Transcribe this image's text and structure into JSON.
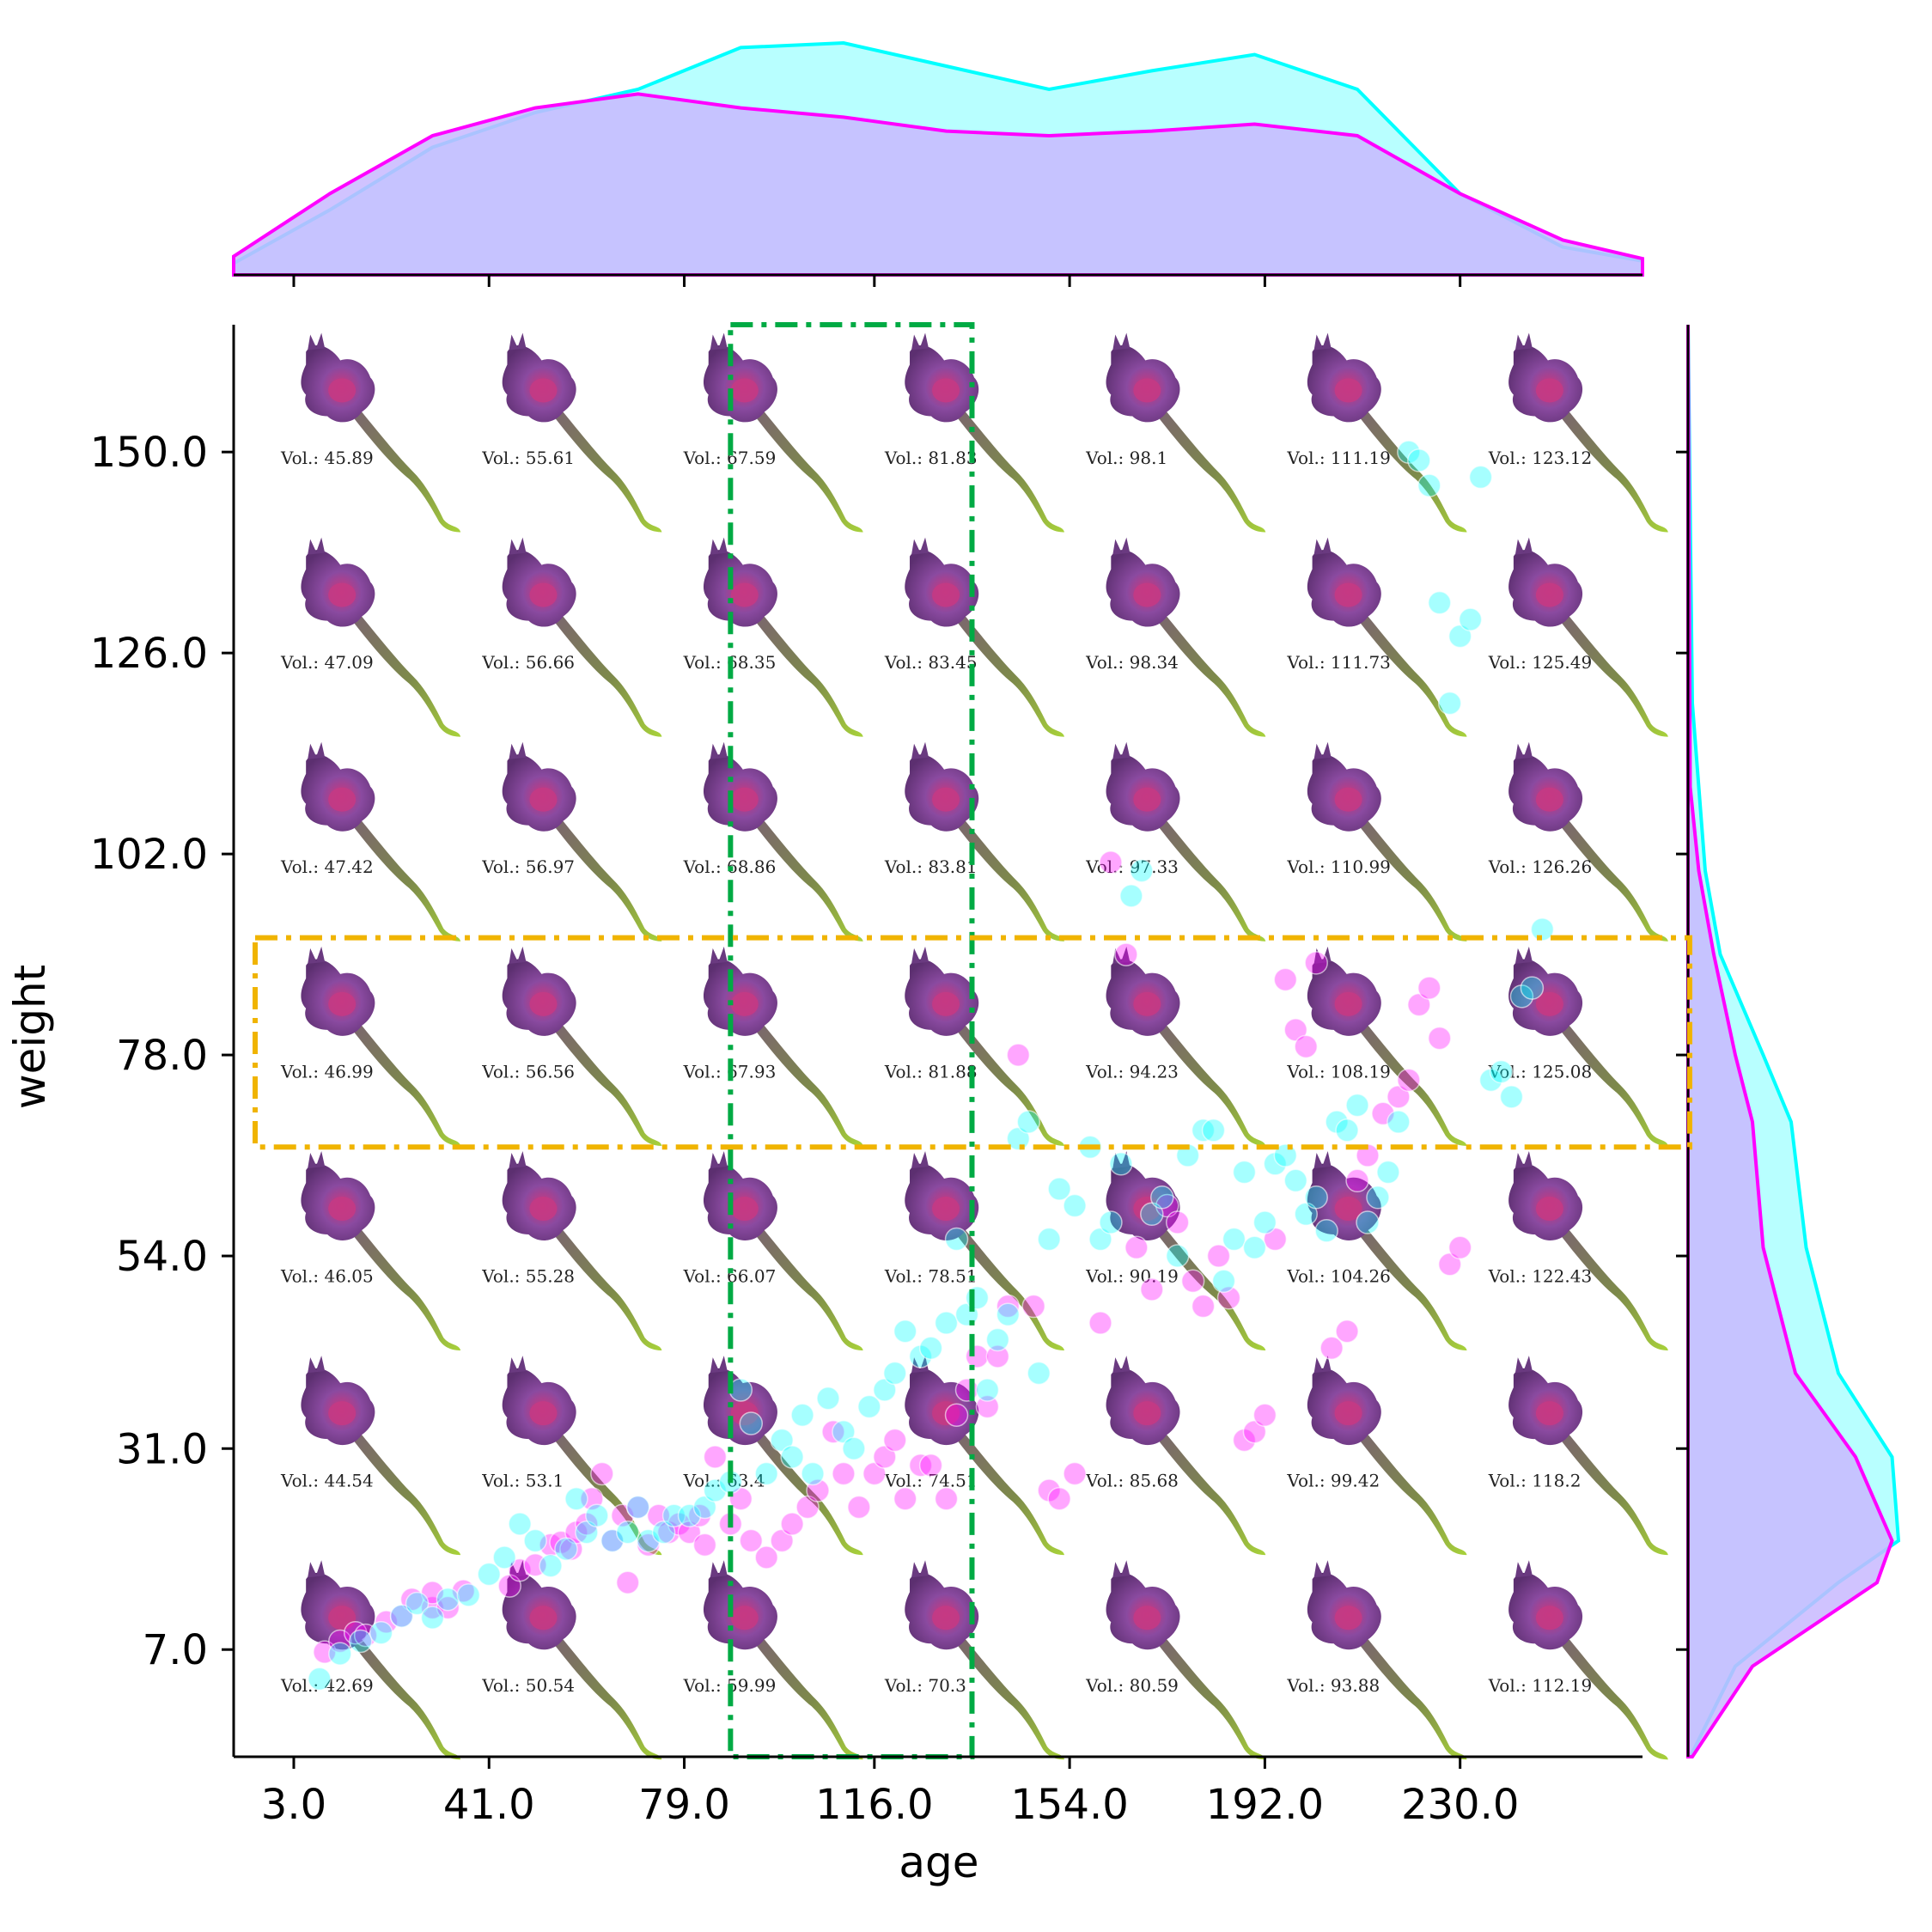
{
  "chart_data": {
    "type": "scatter",
    "xlabel": "age",
    "ylabel": "weight",
    "xlim": [
      -8.7,
      265.5
    ],
    "ylim": [
      -5.8,
      165.2
    ],
    "xticks": [
      "3.0",
      "41.0",
      "79.0",
      "116.0",
      "154.0",
      "192.0",
      "230.0"
    ],
    "yticks": [
      "7.0",
      "31.0",
      "54.0",
      "78.0",
      "102.0",
      "126.0",
      "150.0"
    ],
    "colors": {
      "series_a": "#ff00ff",
      "series_b": "#00ffff",
      "kde_overlap": "#c8b8ff",
      "vertical_highlight": "#00aa44",
      "horizontal_highlight": "#f0b400"
    },
    "grid": false,
    "legend": "none",
    "series": [
      {
        "color": "#ff00ff",
        "points": [
          [
            9,
            6.7
          ],
          [
            12,
            8
          ],
          [
            15,
            9
          ],
          [
            17,
            8.7
          ],
          [
            21,
            10.3
          ],
          [
            24,
            11
          ],
          [
            26,
            13
          ],
          [
            30,
            12
          ],
          [
            30,
            13.8
          ],
          [
            33,
            12
          ],
          [
            36,
            14
          ],
          [
            45,
            14.6
          ],
          [
            47,
            16.5
          ],
          [
            50,
            17.1
          ],
          [
            53,
            19.5
          ],
          [
            55,
            19.8
          ],
          [
            57,
            19
          ],
          [
            58,
            21
          ],
          [
            60,
            22
          ],
          [
            61,
            25
          ],
          [
            63,
            28
          ],
          [
            65,
            20
          ],
          [
            67,
            23
          ],
          [
            68,
            15
          ],
          [
            70,
            24
          ],
          [
            72,
            19.5
          ],
          [
            74,
            23
          ],
          [
            76,
            21
          ],
          [
            78,
            22
          ],
          [
            80,
            21
          ],
          [
            82,
            23
          ],
          [
            83,
            19.5
          ],
          [
            85,
            30
          ],
          [
            88,
            22
          ],
          [
            90,
            25
          ],
          [
            92,
            20
          ],
          [
            95,
            18
          ],
          [
            98,
            20
          ],
          [
            100,
            22
          ],
          [
            103,
            24
          ],
          [
            105,
            26
          ],
          [
            108,
            33
          ],
          [
            110,
            28
          ],
          [
            113,
            24
          ],
          [
            116,
            28
          ],
          [
            118,
            30
          ],
          [
            120,
            32
          ],
          [
            122,
            25
          ],
          [
            125,
            29
          ],
          [
            127,
            29
          ],
          [
            130,
            25
          ],
          [
            132,
            35
          ],
          [
            134,
            38
          ],
          [
            136,
            42
          ],
          [
            138,
            36
          ],
          [
            140,
            42
          ],
          [
            142,
            48
          ],
          [
            144,
            78
          ],
          [
            147,
            48
          ],
          [
            150,
            26
          ],
          [
            152,
            25
          ],
          [
            155,
            28
          ],
          [
            160,
            46
          ],
          [
            162,
            101
          ],
          [
            165,
            90
          ],
          [
            167,
            55
          ],
          [
            170,
            50
          ],
          [
            173,
            60
          ],
          [
            175,
            58
          ],
          [
            178,
            51
          ],
          [
            180,
            48
          ],
          [
            183,
            54
          ],
          [
            185,
            49
          ],
          [
            188,
            32
          ],
          [
            190,
            33
          ],
          [
            192,
            35
          ],
          [
            194,
            56
          ],
          [
            196,
            87
          ],
          [
            198,
            81
          ],
          [
            200,
            79
          ],
          [
            202,
            89
          ],
          [
            205,
            43
          ],
          [
            208,
            45
          ],
          [
            210,
            63
          ],
          [
            212,
            66
          ],
          [
            215,
            71
          ],
          [
            218,
            73
          ],
          [
            220,
            75
          ],
          [
            222,
            84
          ],
          [
            224,
            86
          ],
          [
            226,
            80
          ],
          [
            228,
            53
          ],
          [
            230,
            55
          ]
        ]
      },
      {
        "color": "#00ffff",
        "points": [
          [
            8,
            3.5
          ],
          [
            12,
            6.5
          ],
          [
            16,
            8
          ],
          [
            20,
            9
          ],
          [
            24,
            11
          ],
          [
            27,
            12.5
          ],
          [
            30,
            10.8
          ],
          [
            33,
            13
          ],
          [
            37,
            13.5
          ],
          [
            41,
            16
          ],
          [
            44,
            18
          ],
          [
            47,
            22
          ],
          [
            50,
            20
          ],
          [
            53,
            17
          ],
          [
            56,
            19
          ],
          [
            58,
            25
          ],
          [
            60,
            21
          ],
          [
            62,
            23
          ],
          [
            65,
            20
          ],
          [
            68,
            21
          ],
          [
            70,
            24
          ],
          [
            72,
            20
          ],
          [
            75,
            21
          ],
          [
            77,
            23
          ],
          [
            80,
            23
          ],
          [
            83,
            24
          ],
          [
            85,
            26
          ],
          [
            88,
            27
          ],
          [
            90,
            38
          ],
          [
            92,
            34
          ],
          [
            95,
            28
          ],
          [
            98,
            32
          ],
          [
            100,
            30
          ],
          [
            102,
            35
          ],
          [
            104,
            28
          ],
          [
            107,
            37
          ],
          [
            110,
            33
          ],
          [
            112,
            31
          ],
          [
            115,
            36
          ],
          [
            118,
            38
          ],
          [
            120,
            40
          ],
          [
            122,
            45
          ],
          [
            125,
            42
          ],
          [
            127,
            43
          ],
          [
            130,
            46
          ],
          [
            132,
            56
          ],
          [
            134,
            47
          ],
          [
            136,
            49
          ],
          [
            138,
            38
          ],
          [
            140,
            44
          ],
          [
            142,
            47
          ],
          [
            144,
            68
          ],
          [
            146,
            70
          ],
          [
            148,
            40
          ],
          [
            150,
            56
          ],
          [
            152,
            62
          ],
          [
            155,
            60
          ],
          [
            158,
            67
          ],
          [
            160,
            56
          ],
          [
            162,
            58
          ],
          [
            164,
            65
          ],
          [
            166,
            97
          ],
          [
            168,
            100
          ],
          [
            170,
            59
          ],
          [
            172,
            61
          ],
          [
            175,
            54
          ],
          [
            177,
            66
          ],
          [
            180,
            69
          ],
          [
            182,
            69
          ],
          [
            184,
            51
          ],
          [
            186,
            56
          ],
          [
            188,
            64
          ],
          [
            190,
            55
          ],
          [
            192,
            58
          ],
          [
            194,
            65
          ],
          [
            196,
            66
          ],
          [
            198,
            63
          ],
          [
            200,
            59
          ],
          [
            202,
            61
          ],
          [
            204,
            57
          ],
          [
            206,
            70
          ],
          [
            208,
            69
          ],
          [
            210,
            72
          ],
          [
            212,
            58
          ],
          [
            214,
            61
          ],
          [
            216,
            64
          ],
          [
            218,
            70
          ],
          [
            220,
            150
          ],
          [
            222,
            149
          ],
          [
            224,
            146
          ],
          [
            226,
            132
          ],
          [
            228,
            120
          ],
          [
            230,
            128
          ],
          [
            232,
            130
          ],
          [
            234,
            147
          ],
          [
            236,
            75
          ],
          [
            238,
            76
          ],
          [
            240,
            73
          ],
          [
            242,
            85
          ],
          [
            244,
            86
          ],
          [
            246,
            93
          ]
        ]
      }
    ],
    "volume_labels": [
      [
        "Vol.: 45.89",
        "Vol.: 55.61",
        "Vol.: 67.59",
        "Vol.: 81.83",
        "Vol.: 98.1",
        "Vol.: 111.19",
        "Vol.: 123.12"
      ],
      [
        "Vol.: 47.09",
        "Vol.: 56.66",
        "Vol.: 68.35",
        "Vol.: 83.45",
        "Vol.: 98.34",
        "Vol.: 111.73",
        "Vol.: 125.49"
      ],
      [
        "Vol.: 47.42",
        "Vol.: 56.97",
        "Vol.: 68.86",
        "Vol.: 83.81",
        "Vol.: 97.33",
        "Vol.: 110.99",
        "Vol.: 126.26"
      ],
      [
        "Vol.: 46.99",
        "Vol.: 56.56",
        "Vol.: 67.93",
        "Vol.: 81.88",
        "Vol.: 94.23",
        "Vol.: 108.19",
        "Vol.: 125.08"
      ],
      [
        "Vol.: 46.05",
        "Vol.: 55.28",
        "Vol.: 66.07",
        "Vol.: 78.51",
        "Vol.: 90.19",
        "Vol.: 104.26",
        "Vol.: 122.43"
      ],
      [
        "Vol.: 44.54",
        "Vol.: 53.1",
        "Vol.: 63.4",
        "Vol.: 74.51",
        "Vol.: 85.68",
        "Vol.: 99.42",
        "Vol.: 118.2"
      ],
      [
        "Vol.: 42.69",
        "Vol.: 50.54",
        "Vol.: 59.99",
        "Vol.: 70.3",
        "Vol.: 80.59",
        "Vol.: 93.88",
        "Vol.: 112.19"
      ]
    ],
    "highlight_boxes": [
      {
        "orientation": "vertical",
        "x_range": [
          88,
          135
        ],
        "style": "dash-dot",
        "color": "#00aa44"
      },
      {
        "orientation": "horizontal",
        "y_range": [
          67,
          92
        ],
        "style": "dash-dot",
        "color": "#f0b400"
      }
    ],
    "marginal_x": {
      "series_a": [
        [
          -8.7,
          0.08
        ],
        [
          10,
          0.35
        ],
        [
          30,
          0.6
        ],
        [
          50,
          0.72
        ],
        [
          70,
          0.78
        ],
        [
          90,
          0.72
        ],
        [
          110,
          0.68
        ],
        [
          130,
          0.62
        ],
        [
          150,
          0.6
        ],
        [
          170,
          0.62
        ],
        [
          190,
          0.65
        ],
        [
          210,
          0.6
        ],
        [
          230,
          0.35
        ],
        [
          250,
          0.15
        ],
        [
          265.5,
          0.07
        ]
      ],
      "series_b": [
        [
          -8.7,
          0.05
        ],
        [
          10,
          0.28
        ],
        [
          30,
          0.55
        ],
        [
          50,
          0.7
        ],
        [
          70,
          0.8
        ],
        [
          90,
          0.98
        ],
        [
          110,
          1.0
        ],
        [
          130,
          0.9
        ],
        [
          150,
          0.8
        ],
        [
          170,
          0.88
        ],
        [
          190,
          0.95
        ],
        [
          210,
          0.8
        ],
        [
          230,
          0.35
        ],
        [
          250,
          0.12
        ],
        [
          265.5,
          0.06
        ]
      ]
    },
    "marginal_y": {
      "series_a": [
        [
          -5.8,
          0.02
        ],
        [
          5,
          0.3
        ],
        [
          15,
          0.88
        ],
        [
          20,
          0.95
        ],
        [
          30,
          0.78
        ],
        [
          40,
          0.5
        ],
        [
          55,
          0.35
        ],
        [
          70,
          0.3
        ],
        [
          78,
          0.22
        ],
        [
          90,
          0.12
        ],
        [
          100,
          0.05
        ],
        [
          110,
          0.01
        ],
        [
          165.2,
          0.0
        ]
      ],
      "series_b": [
        [
          -5.8,
          0.01
        ],
        [
          5,
          0.22
        ],
        [
          15,
          0.7
        ],
        [
          20,
          0.98
        ],
        [
          30,
          0.95
        ],
        [
          40,
          0.7
        ],
        [
          55,
          0.55
        ],
        [
          70,
          0.48
        ],
        [
          78,
          0.35
        ],
        [
          90,
          0.15
        ],
        [
          100,
          0.08
        ],
        [
          120,
          0.02
        ],
        [
          165.2,
          0.0
        ]
      ]
    }
  }
}
